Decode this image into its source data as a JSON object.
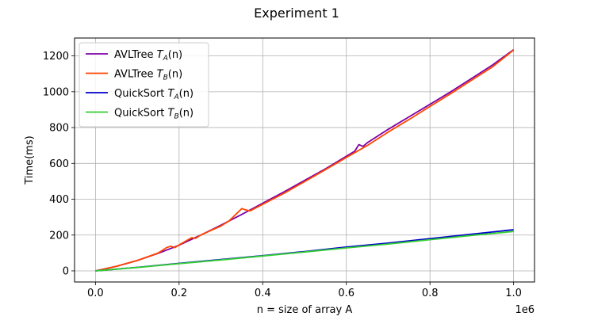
{
  "chart_data": {
    "type": "line",
    "title": "Experiment 1",
    "xlabel": "n = size of array A",
    "ylabel": "Time(ms)",
    "x_offset_label": "1e6",
    "xlim": [
      -0.05,
      1.05
    ],
    "ylim": [
      -62,
      1300
    ],
    "grid": true,
    "legend_position": "top-left",
    "x_ticks": [
      0.0,
      0.2,
      0.4,
      0.6,
      0.8,
      1.0
    ],
    "x_tick_labels": [
      "0.0",
      "0.2",
      "0.4",
      "0.6",
      "0.8",
      "1.0"
    ],
    "y_ticks": [
      0,
      200,
      400,
      600,
      800,
      1000,
      1200
    ],
    "y_tick_labels": [
      "0",
      "200",
      "400",
      "600",
      "800",
      "1000",
      "1200"
    ],
    "series": [
      {
        "name": "AVLTree T_A(n)",
        "legend_main": "AVLTree ",
        "legend_var": "T",
        "legend_sub": "A",
        "legend_tail": "(n)",
        "color": "#7f00a6",
        "x": [
          0,
          0.05,
          0.1,
          0.15,
          0.2,
          0.25,
          0.3,
          0.35,
          0.4,
          0.45,
          0.5,
          0.55,
          0.6,
          0.62,
          0.63,
          0.64,
          0.65,
          0.7,
          0.75,
          0.8,
          0.85,
          0.9,
          0.95,
          1.0
        ],
        "y": [
          0,
          25,
          58,
          98,
          143,
          198,
          255,
          315,
          378,
          440,
          505,
          570,
          640,
          668,
          705,
          695,
          715,
          790,
          860,
          930,
          1000,
          1075,
          1150,
          1235
        ]
      },
      {
        "name": "AVLTree T_B(n)",
        "legend_main": "AVLTree ",
        "legend_var": "T",
        "legend_sub": "B",
        "legend_tail": "(n)",
        "color": "#ff4500",
        "x": [
          0,
          0.05,
          0.1,
          0.15,
          0.17,
          0.18,
          0.19,
          0.2,
          0.23,
          0.24,
          0.25,
          0.28,
          0.3,
          0.32,
          0.35,
          0.36,
          0.37,
          0.4,
          0.45,
          0.5,
          0.55,
          0.6,
          0.65,
          0.7,
          0.75,
          0.8,
          0.85,
          0.9,
          0.95,
          1.0
        ],
        "y": [
          0,
          25,
          58,
          100,
          130,
          138,
          130,
          145,
          185,
          182,
          198,
          230,
          250,
          280,
          348,
          340,
          335,
          372,
          432,
          498,
          565,
          633,
          700,
          775,
          845,
          918,
          990,
          1065,
          1140,
          1233
        ]
      },
      {
        "name": "QuickSort T_A(n)",
        "legend_main": "QuickSort ",
        "legend_var": "T",
        "legend_sub": "A",
        "legend_tail": "(n)",
        "color": "#0000cd",
        "x": [
          0,
          0.1,
          0.2,
          0.3,
          0.4,
          0.5,
          0.6,
          0.7,
          0.8,
          0.9,
          1.0
        ],
        "y": [
          0,
          20,
          42,
          63,
          85,
          108,
          133,
          155,
          180,
          205,
          230
        ]
      },
      {
        "name": "QuickSort T_B(n)",
        "legend_main": "QuickSort ",
        "legend_var": "T",
        "legend_sub": "B",
        "legend_tail": "(n)",
        "color": "#32cd32",
        "x": [
          0,
          0.1,
          0.2,
          0.3,
          0.4,
          0.5,
          0.6,
          0.7,
          0.8,
          0.9,
          1.0
        ],
        "y": [
          0,
          19,
          40,
          61,
          83,
          105,
          128,
          150,
          174,
          198,
          220
        ]
      }
    ]
  }
}
